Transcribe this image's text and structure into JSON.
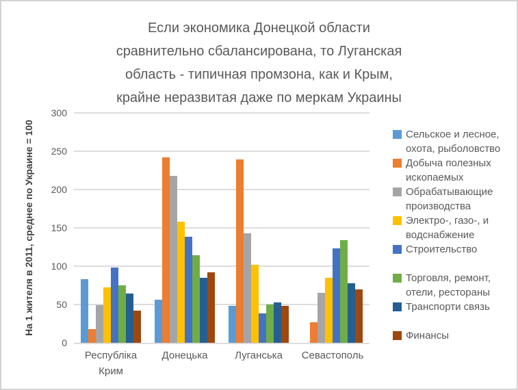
{
  "window": {
    "background": "#ffffff",
    "border_color": "#d3d3d3"
  },
  "title": {
    "lines": [
      "Если экономика Донецкой области",
      "сравнительно сбалансирована, то Луганская",
      "область - типичная промзона, как и Крым,",
      "крайне неразвитая даже по меркам Украины"
    ],
    "color": "#595959"
  },
  "chart_data": {
    "type": "bar",
    "title": "Если экономика Донецкой области сравнительно сбалансирована, то Луганская область - типичная промзона, как и Крым, крайне неразвитая даже по меркам Украины",
    "ylabel": "На 1 жителя в 2011, среднее по Украине = 100",
    "xlabel": "",
    "ylim": [
      0,
      300
    ],
    "yticks": [
      0,
      50,
      100,
      150,
      200,
      250,
      300
    ],
    "grid": true,
    "legend_position": "right",
    "categories": [
      "Республіка Крим",
      "Донецька",
      "Луганська",
      "Севастополь"
    ],
    "series": [
      {
        "name": "Сельское и лесное, охота, рыболовство",
        "color": "#5B9BD5",
        "values": [
          83,
          56,
          48,
          0
        ]
      },
      {
        "name": "Добыча полезных ископаемых",
        "color": "#ED7D31",
        "values": [
          18,
          242,
          239,
          27
        ]
      },
      {
        "name": "Обрабатывающие производства",
        "color": "#A5A5A5",
        "values": [
          49,
          218,
          143,
          65
        ]
      },
      {
        "name": "Электро-, газо-, и водснабжение",
        "color": "#FFC000",
        "values": [
          72,
          158,
          102,
          85
        ]
      },
      {
        "name": "Строительство",
        "color": "#4472C4",
        "values": [
          98,
          138,
          38,
          123
        ]
      },
      {
        "name": "Торговля, ремонт, отели, рестораны",
        "color": "#70AD47",
        "values": [
          75,
          114,
          50,
          134
        ]
      },
      {
        "name": "Транспорти связь",
        "color": "#255E91",
        "values": [
          64,
          85,
          53,
          78
        ]
      },
      {
        "name": "Финансы",
        "color": "#9E480E",
        "values": [
          42,
          92,
          48,
          70
        ]
      }
    ],
    "gridline_color": "#dcdcdc",
    "text_color": "#595959"
  }
}
